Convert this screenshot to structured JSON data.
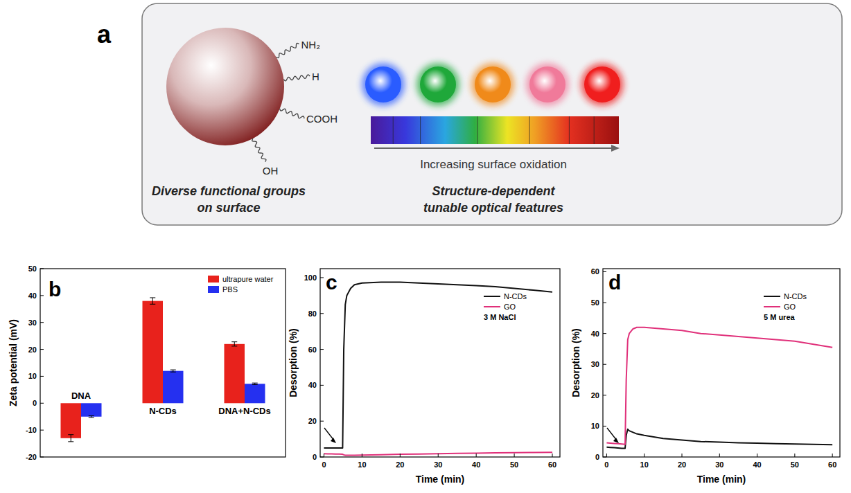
{
  "diagram": {
    "panel_label": "a",
    "groups": [
      "NH₂",
      "H",
      "COOH",
      "OH"
    ],
    "left_caption": [
      "Diverse functional groups",
      "on surface"
    ],
    "right_caption": [
      "Structure-dependent",
      "tunable optical features"
    ],
    "scale_label": "Increasing surface oxidation",
    "colors": [
      "#2a5cff",
      "#1fa83a",
      "#f08a1a",
      "#f07a9a",
      "#f01e1e"
    ]
  },
  "chart_data": [
    {
      "panel_label": "b",
      "type": "bar",
      "categories": [
        "DNA",
        "N-CDs",
        "DNA+N-CDs"
      ],
      "series": [
        {
          "name": "ultrapure water",
          "color": "#e8221c",
          "values": [
            -13,
            38,
            22
          ],
          "errors": [
            1.3,
            1.2,
            0.8
          ]
        },
        {
          "name": "PBS",
          "color": "#2530f0",
          "values": [
            -5,
            12,
            7.2
          ],
          "errors": [
            0.3,
            0.4,
            0.3
          ]
        }
      ],
      "y_label": "Zeta potential (mV)",
      "ylim": [
        -20,
        50
      ],
      "yticks": [
        -20,
        -10,
        0,
        10,
        20,
        30,
        40,
        50
      ],
      "legend": "top-right",
      "grid": false
    },
    {
      "panel_label": "c",
      "type": "line",
      "x": [
        0,
        1,
        2,
        3,
        4,
        4.9,
        5.2,
        5.6,
        6,
        7,
        8,
        10,
        15,
        20,
        25,
        30,
        35,
        40,
        45,
        50,
        55,
        60
      ],
      "series": [
        {
          "name": "N-CDs",
          "color": "#111111",
          "values": [
            5,
            5,
            5,
            5,
            5,
            5,
            60,
            85,
            90,
            94,
            96,
            97,
            97.5,
            97.5,
            97,
            96.5,
            96,
            95.5,
            95,
            94,
            93,
            92
          ]
        },
        {
          "name": "GO",
          "color": "#e0307a",
          "values": [
            1.8,
            1.7,
            1.7,
            1.6,
            1.6,
            1.5,
            1.2,
            1,
            1,
            1,
            1,
            1.1,
            1.3,
            1.5,
            1.6,
            1.8,
            2,
            2.1,
            2.3,
            2.4,
            2.5,
            2.6
          ]
        }
      ],
      "annotation": "3 M NaCl",
      "x_label": "Time (min)",
      "y_label": "Desorption (%)",
      "xlim": [
        -1,
        62
      ],
      "xticks": [
        0,
        10,
        20,
        30,
        40,
        50,
        60
      ],
      "ylim": [
        0,
        105
      ],
      "yticks": [
        0,
        20,
        40,
        60,
        80,
        100
      ],
      "legend": "top-right",
      "grid": false
    },
    {
      "panel_label": "d",
      "type": "line",
      "x": [
        0,
        1,
        2,
        3,
        4,
        4.9,
        5.2,
        5.6,
        6,
        7,
        8,
        10,
        15,
        20,
        25,
        30,
        35,
        40,
        45,
        50,
        55,
        60
      ],
      "series": [
        {
          "name": "N-CDs",
          "color": "#111111",
          "values": [
            3.2,
            3.1,
            3,
            2.9,
            2.8,
            2.8,
            7,
            9,
            8.5,
            8,
            7.5,
            7,
            6,
            5.5,
            5,
            4.8,
            4.6,
            4.5,
            4.3,
            4.2,
            4.1,
            4
          ]
        },
        {
          "name": "GO",
          "color": "#e0307a",
          "values": [
            4.6,
            4.5,
            4.4,
            4.3,
            4.2,
            4.1,
            25,
            38,
            40,
            41.5,
            42,
            42,
            41.5,
            41,
            40,
            39.5,
            39,
            38.5,
            38,
            37.5,
            36.5,
            35.5
          ]
        }
      ],
      "annotation": "5 M urea",
      "x_label": "Time (min)",
      "y_label": "Desorption (%)",
      "xlim": [
        -1,
        62
      ],
      "xticks": [
        0,
        10,
        20,
        30,
        40,
        50,
        60
      ],
      "ylim": [
        0,
        61
      ],
      "yticks": [
        0,
        10,
        20,
        30,
        40,
        50,
        60
      ],
      "legend": "top-right",
      "grid": false
    }
  ]
}
